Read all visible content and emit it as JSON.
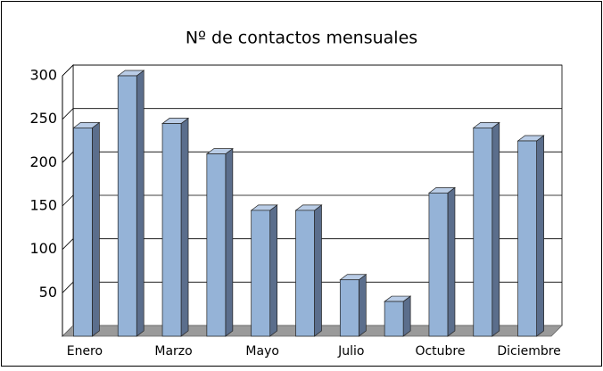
{
  "chart_data": {
    "type": "bar",
    "title": "Nº de contactos mensuales",
    "categories": [
      "Enero",
      null,
      "Marzo",
      null,
      "Mayo",
      null,
      "Julio",
      null,
      "Octubre",
      null,
      "Diciembre"
    ],
    "values": [
      240,
      300,
      245,
      210,
      145,
      145,
      65,
      40,
      165,
      240,
      225
    ],
    "color": "#95b3d7",
    "ylim": [
      0,
      300
    ],
    "yticks": [
      50,
      100,
      150,
      200,
      250,
      300
    ],
    "grid": true
  }
}
